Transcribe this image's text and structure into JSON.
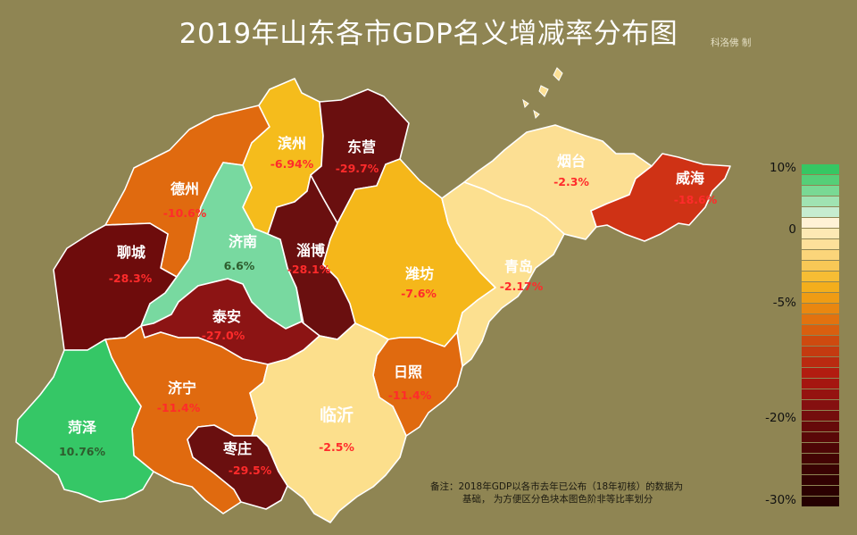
{
  "title": "2019年山东各市GDP名义增减率分布图",
  "credit": "科洛佛 制",
  "cities": [
    {
      "name": "德州",
      "value": "-10.6%",
      "color": "#e06a0f"
    },
    {
      "name": "滨州",
      "value": "-6.94%",
      "color": "#f5bc1c"
    },
    {
      "name": "东营",
      "value": "-29.7%",
      "color": "#6a0f0f"
    },
    {
      "name": "烟台",
      "value": "-2.3%",
      "color": "#fcdf93"
    },
    {
      "name": "威海",
      "value": "-18.6%",
      "color": "#cf3215"
    },
    {
      "name": "聊城",
      "value": "-28.3%",
      "color": "#6e0c0c"
    },
    {
      "name": "济南",
      "value": "6.6%",
      "color": "#78d9a0"
    },
    {
      "name": "淄博",
      "value": "-28.1%",
      "color": "#6a0f0f"
    },
    {
      "name": "潍坊",
      "value": "-7.6%",
      "color": "#f5b71a"
    },
    {
      "name": "青岛",
      "value": "-2.17%",
      "color": "#fce090"
    },
    {
      "name": "泰安",
      "value": "-27.0%",
      "color": "#8c1414"
    },
    {
      "name": "济宁",
      "value": "-11.4%",
      "color": "#e06a0f"
    },
    {
      "name": "日照",
      "value": "-11.4%",
      "color": "#e06a0f"
    },
    {
      "name": "临沂",
      "value": "-2.5%",
      "color": "#fcdf8c"
    },
    {
      "name": "菏泽",
      "value": "10.76%",
      "color": "#35c766"
    },
    {
      "name": "枣庄",
      "value": "-29.5%",
      "color": "#6a0f0f"
    }
  ],
  "note": {
    "line1": "备注：2018年GDP以各市去年已公布（18年初核）的数据为",
    "line2": "基础， 为方便区分色块本图色阶非等比率划分"
  },
  "legend": {
    "ticks": [
      "10%",
      "0",
      "-5%",
      "-20%",
      "-30%"
    ],
    "colors": [
      "#36c763",
      "#55cf78",
      "#79d994",
      "#a0e3b2",
      "#c6ecd0",
      "#fff2d6",
      "#fde9b4",
      "#fde09a",
      "#fbd57a",
      "#f8c856",
      "#f6bd34",
      "#f3ae1c",
      "#ef9c14",
      "#e98710",
      "#e2720f",
      "#d95f0f",
      "#ce4a0f",
      "#c43a10",
      "#ba2a10",
      "#b21c10",
      "#a51610",
      "#951310",
      "#851010",
      "#740d0d",
      "#660a0a",
      "#5a0808",
      "#4e0606",
      "#440404",
      "#3a0303",
      "#320202",
      "#2b0101",
      "#250101"
    ]
  }
}
